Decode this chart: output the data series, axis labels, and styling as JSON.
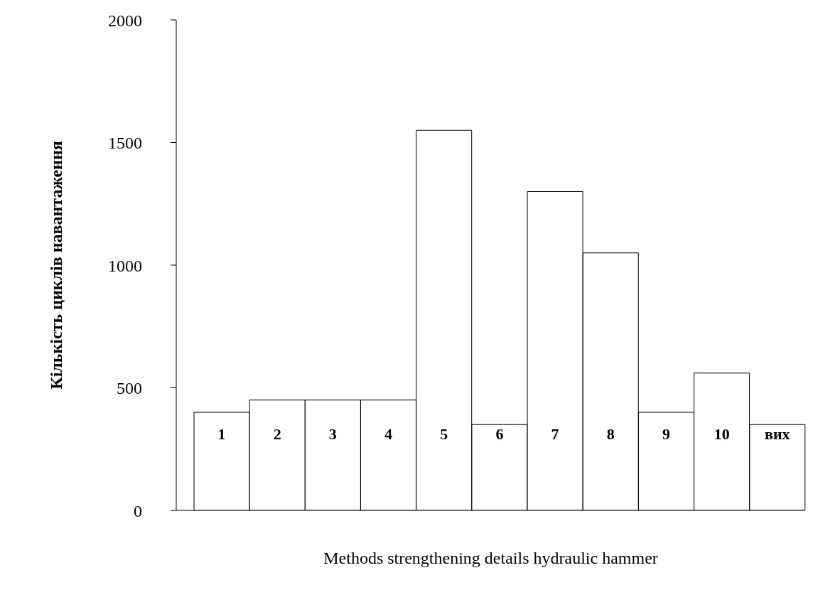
{
  "chart_data": {
    "type": "bar",
    "xlabel": "Methods strengthening details hydraulic hammer",
    "ylabel": "Кількість циклів навантаження",
    "categories": [
      "1",
      "2",
      "3",
      "4",
      "5",
      "6",
      "7",
      "8",
      "9",
      "10",
      "вих"
    ],
    "values": [
      400,
      450,
      450,
      450,
      1550,
      350,
      1300,
      1050,
      400,
      560,
      350
    ],
    "color": "#ffffff",
    "ylim": [
      0,
      2000
    ],
    "yticks": [
      0,
      500,
      1000,
      1500,
      2000
    ],
    "tick_labels": "y"
  }
}
